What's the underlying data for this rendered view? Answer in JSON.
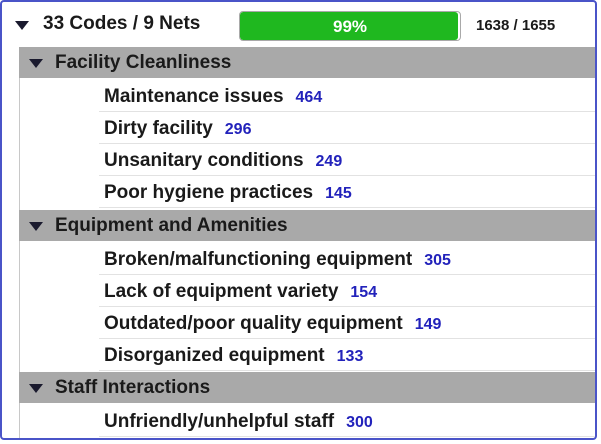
{
  "summary": {
    "label": "33 Codes / 9 Nets",
    "progress_label": "99%",
    "progress_fraction": 0.99,
    "count": "1638 / 1655"
  },
  "categories": [
    {
      "title": "Facility Cleanliness",
      "codes": [
        {
          "label": "Maintenance issues",
          "count": "464"
        },
        {
          "label": "Dirty facility",
          "count": "296"
        },
        {
          "label": "Unsanitary conditions",
          "count": "249"
        },
        {
          "label": "Poor hygiene practices",
          "count": "145"
        }
      ]
    },
    {
      "title": "Equipment and Amenities",
      "codes": [
        {
          "label": "Broken/malfunctioning equipment",
          "count": "305"
        },
        {
          "label": "Lack of equipment variety",
          "count": "154"
        },
        {
          "label": "Outdated/poor quality equipment",
          "count": "149"
        },
        {
          "label": "Disorganized equipment",
          "count": "133"
        }
      ]
    },
    {
      "title": "Staff Interactions",
      "codes": [
        {
          "label": "Unfriendly/unhelpful staff",
          "count": "300"
        }
      ]
    }
  ],
  "colors": {
    "progress": "#1fb81f",
    "header_bg": "#a9a9a9",
    "count_text": "#2222bb",
    "frame_border": "#4a54c8"
  },
  "icons": {
    "expand": "caret-down-icon"
  }
}
